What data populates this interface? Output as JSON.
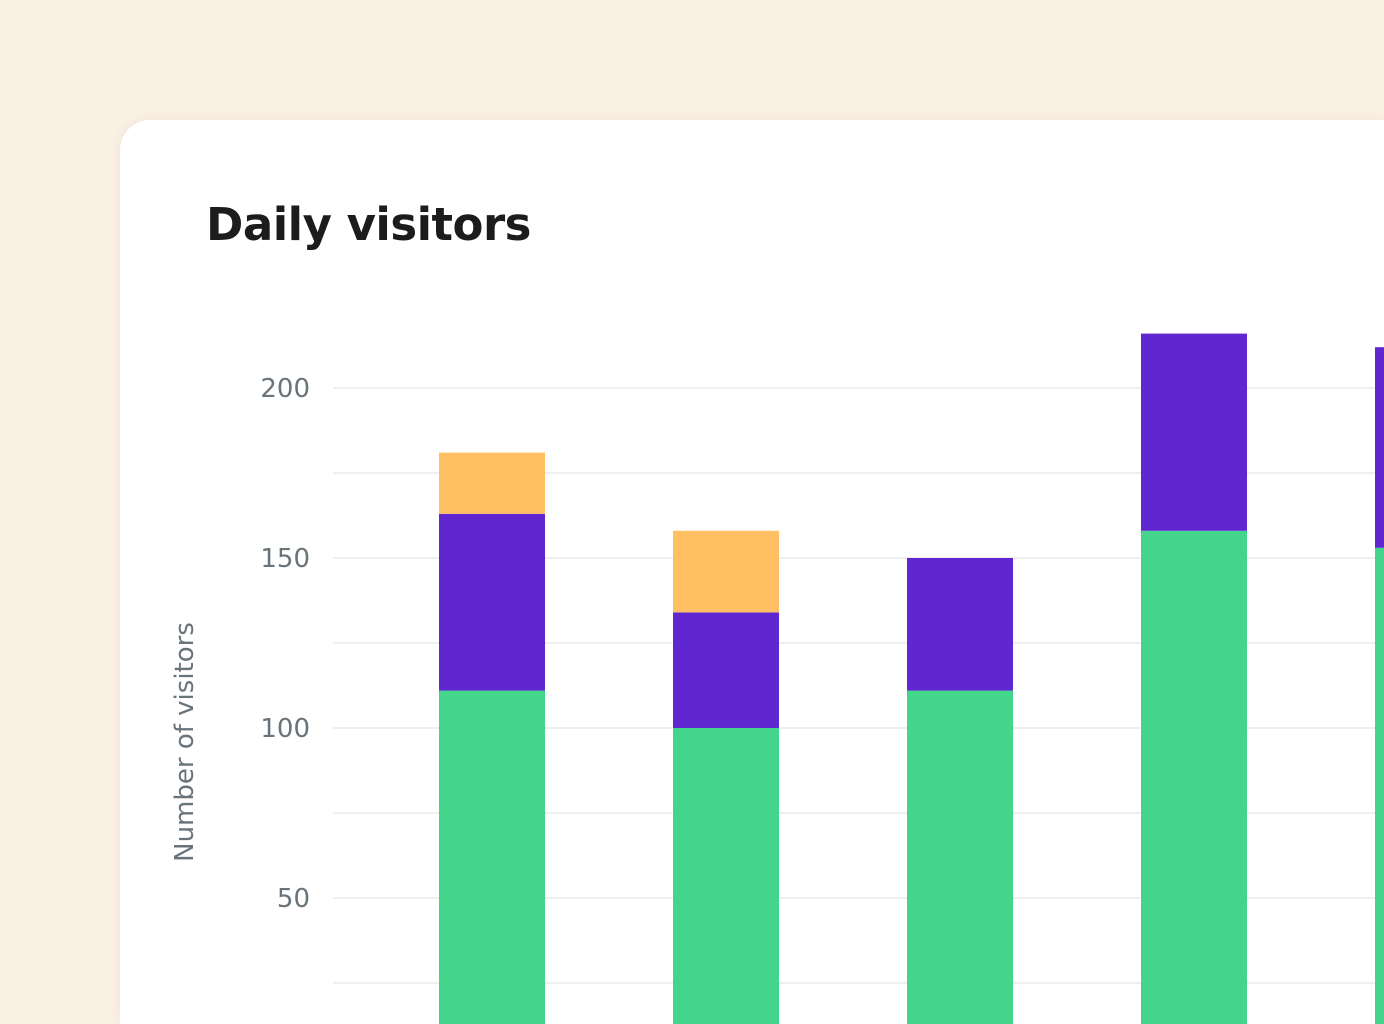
{
  "chart_data": {
    "type": "bar",
    "stacked": true,
    "title": "Daily visitors",
    "xlabel": "",
    "ylabel": "Number of visitors",
    "ylim": [
      0,
      220
    ],
    "yticks": [
      50,
      100,
      150,
      200
    ],
    "grid": true,
    "gridlines_every": 25,
    "colors": [
      "#44D58D",
      "#6027D0",
      "#FFC064"
    ],
    "series": [
      {
        "values": [
          111,
          100,
          111,
          158,
          153
        ]
      },
      {
        "values": [
          52,
          34,
          39,
          58,
          59
        ]
      },
      {
        "values": [
          18,
          24,
          0,
          0,
          0
        ]
      }
    ]
  }
}
